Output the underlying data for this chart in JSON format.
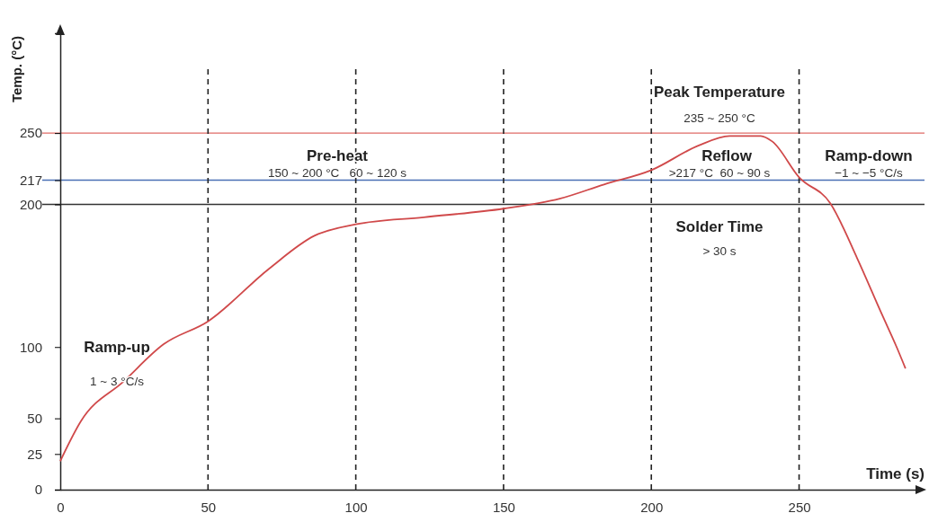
{
  "chart_data": {
    "type": "line",
    "xlabel": "Time (s)",
    "ylabel": "Temp. (°C)",
    "xlim": [
      0,
      290
    ],
    "xticks": [
      0,
      50,
      100,
      150,
      200,
      250
    ],
    "ylim": [
      0,
      320
    ],
    "yticks": [
      0,
      25,
      50,
      100,
      200,
      217,
      250
    ],
    "grid": false,
    "marker": "none",
    "line_style": "solid",
    "series": [
      {
        "color": "#d0494a",
        "x": [
          0,
          7,
          21.5,
          35,
          50,
          70.7,
          86,
          100,
          123,
          150,
          169,
          184,
          200,
          215.7,
          226.5,
          237,
          241,
          250,
          260.5,
          269.7,
          278,
          283,
          286
        ],
        "values": [
          20,
          48,
          76,
          102,
          118,
          155,
          178,
          186,
          191,
          197,
          204,
          214,
          224,
          241,
          248,
          248,
          244,
          219,
          201,
          162,
          123,
          100,
          85
        ]
      }
    ],
    "ref_lines": [
      {
        "axis": "y",
        "value": 250,
        "color": "#e06a66"
      },
      {
        "axis": "y",
        "value": 217,
        "color": "#4a6fb5"
      },
      {
        "axis": "y",
        "value": 200,
        "color": "#333333"
      },
      {
        "axis": "x",
        "value": 50,
        "color": "#222222",
        "line_style": "dashed"
      },
      {
        "axis": "x",
        "value": 100,
        "color": "#222222",
        "line_style": "dashed"
      },
      {
        "axis": "x",
        "value": 150,
        "color": "#222222",
        "line_style": "dashed"
      },
      {
        "axis": "x",
        "value": 200,
        "color": "#222222",
        "line_style": "dashed"
      },
      {
        "axis": "x",
        "value": 250,
        "color": "#222222",
        "line_style": "dashed"
      }
    ],
    "annotations": [
      "Ramp-up",
      "1 ~ 3 °C/s",
      "Pre-heat",
      "150 ~ 200 °C   60 ~ 120 s",
      "Peak Temperature",
      "235 ~ 250 °C",
      "Reflow",
      ">217 °C  60 ~ 90 s",
      "Solder Time",
      "> 30 s",
      "Ramp-down",
      "−1 ~ −5 °C/s"
    ]
  }
}
